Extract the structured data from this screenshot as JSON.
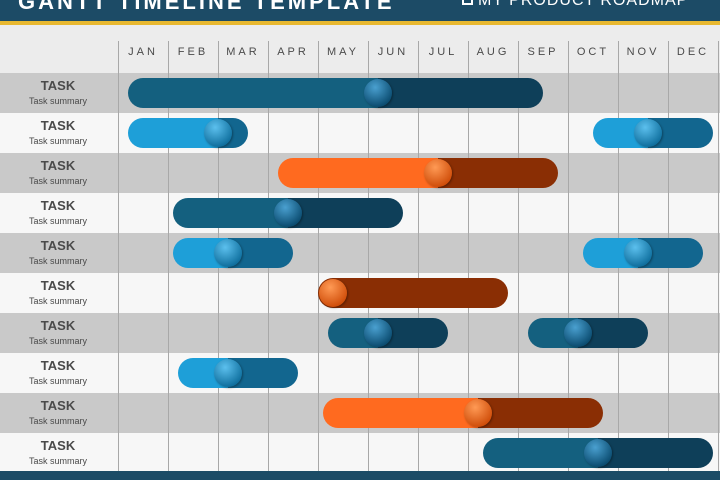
{
  "header": {
    "title": "GANTT TIMELINE TEMPLATE",
    "subtitle": "MY PRODUCT ROADMAP",
    "icon": "laptop-icon",
    "band_color": "#1c4b66",
    "accent_color": "#e8b830"
  },
  "months": [
    "JAN",
    "FEB",
    "MAR",
    "APR",
    "MAY",
    "JUN",
    "JUL",
    "AUG",
    "SEP",
    "OCT",
    "NOV",
    "DEC"
  ],
  "palettes": {
    "navy": {
      "left": "#14607f",
      "right": "#0e3f59",
      "knob_light": "#4aa0d0",
      "knob_dark": "#0b4c70"
    },
    "blue": {
      "left": "#1e9fd8",
      "right": "#12668f",
      "knob_light": "#5cc0ee",
      "knob_dark": "#0f6f9e"
    },
    "orange": {
      "left": "#ff6a1f",
      "right": "#8a2e04",
      "knob_light": "#ff9a55",
      "knob_dark": "#d04e0a"
    }
  },
  "tasks": [
    {
      "label": "TASK",
      "summary": "Task summary",
      "bars": [
        {
          "start": 0.2,
          "end": 8.5,
          "split": 5.2,
          "color": "navy"
        }
      ]
    },
    {
      "label": "TASK",
      "summary": "Task summary",
      "bars": [
        {
          "start": 0.2,
          "end": 2.6,
          "split": 2.0,
          "color": "blue"
        },
        {
          "start": 9.5,
          "end": 11.9,
          "split": 10.6,
          "color": "blue"
        }
      ]
    },
    {
      "label": "TASK",
      "summary": "Task summary",
      "bars": [
        {
          "start": 3.2,
          "end": 8.8,
          "split": 6.4,
          "color": "orange"
        }
      ]
    },
    {
      "label": "TASK",
      "summary": "Task summary",
      "bars": [
        {
          "start": 1.1,
          "end": 5.7,
          "split": 3.4,
          "color": "navy"
        }
      ]
    },
    {
      "label": "TASK",
      "summary": "Task summary",
      "bars": [
        {
          "start": 1.1,
          "end": 3.5,
          "split": 2.2,
          "color": "blue"
        },
        {
          "start": 9.3,
          "end": 11.7,
          "split": 10.4,
          "color": "blue"
        }
      ]
    },
    {
      "label": "TASK",
      "summary": "Task summary",
      "bars": [
        {
          "start": 4.0,
          "end": 7.8,
          "split": 4.0,
          "color": "orange"
        }
      ]
    },
    {
      "label": "TASK",
      "summary": "Task summary",
      "bars": [
        {
          "start": 4.2,
          "end": 6.6,
          "split": 5.2,
          "color": "navy"
        },
        {
          "start": 8.2,
          "end": 10.6,
          "split": 9.2,
          "color": "navy"
        }
      ]
    },
    {
      "label": "TASK",
      "summary": "Task summary",
      "bars": [
        {
          "start": 1.2,
          "end": 3.6,
          "split": 2.2,
          "color": "blue"
        }
      ]
    },
    {
      "label": "TASK",
      "summary": "Task summary",
      "bars": [
        {
          "start": 4.1,
          "end": 9.7,
          "split": 7.2,
          "color": "orange"
        }
      ]
    },
    {
      "label": "TASK",
      "summary": "Task summary",
      "bars": [
        {
          "start": 7.3,
          "end": 11.9,
          "split": 9.6,
          "color": "navy"
        }
      ]
    }
  ]
}
